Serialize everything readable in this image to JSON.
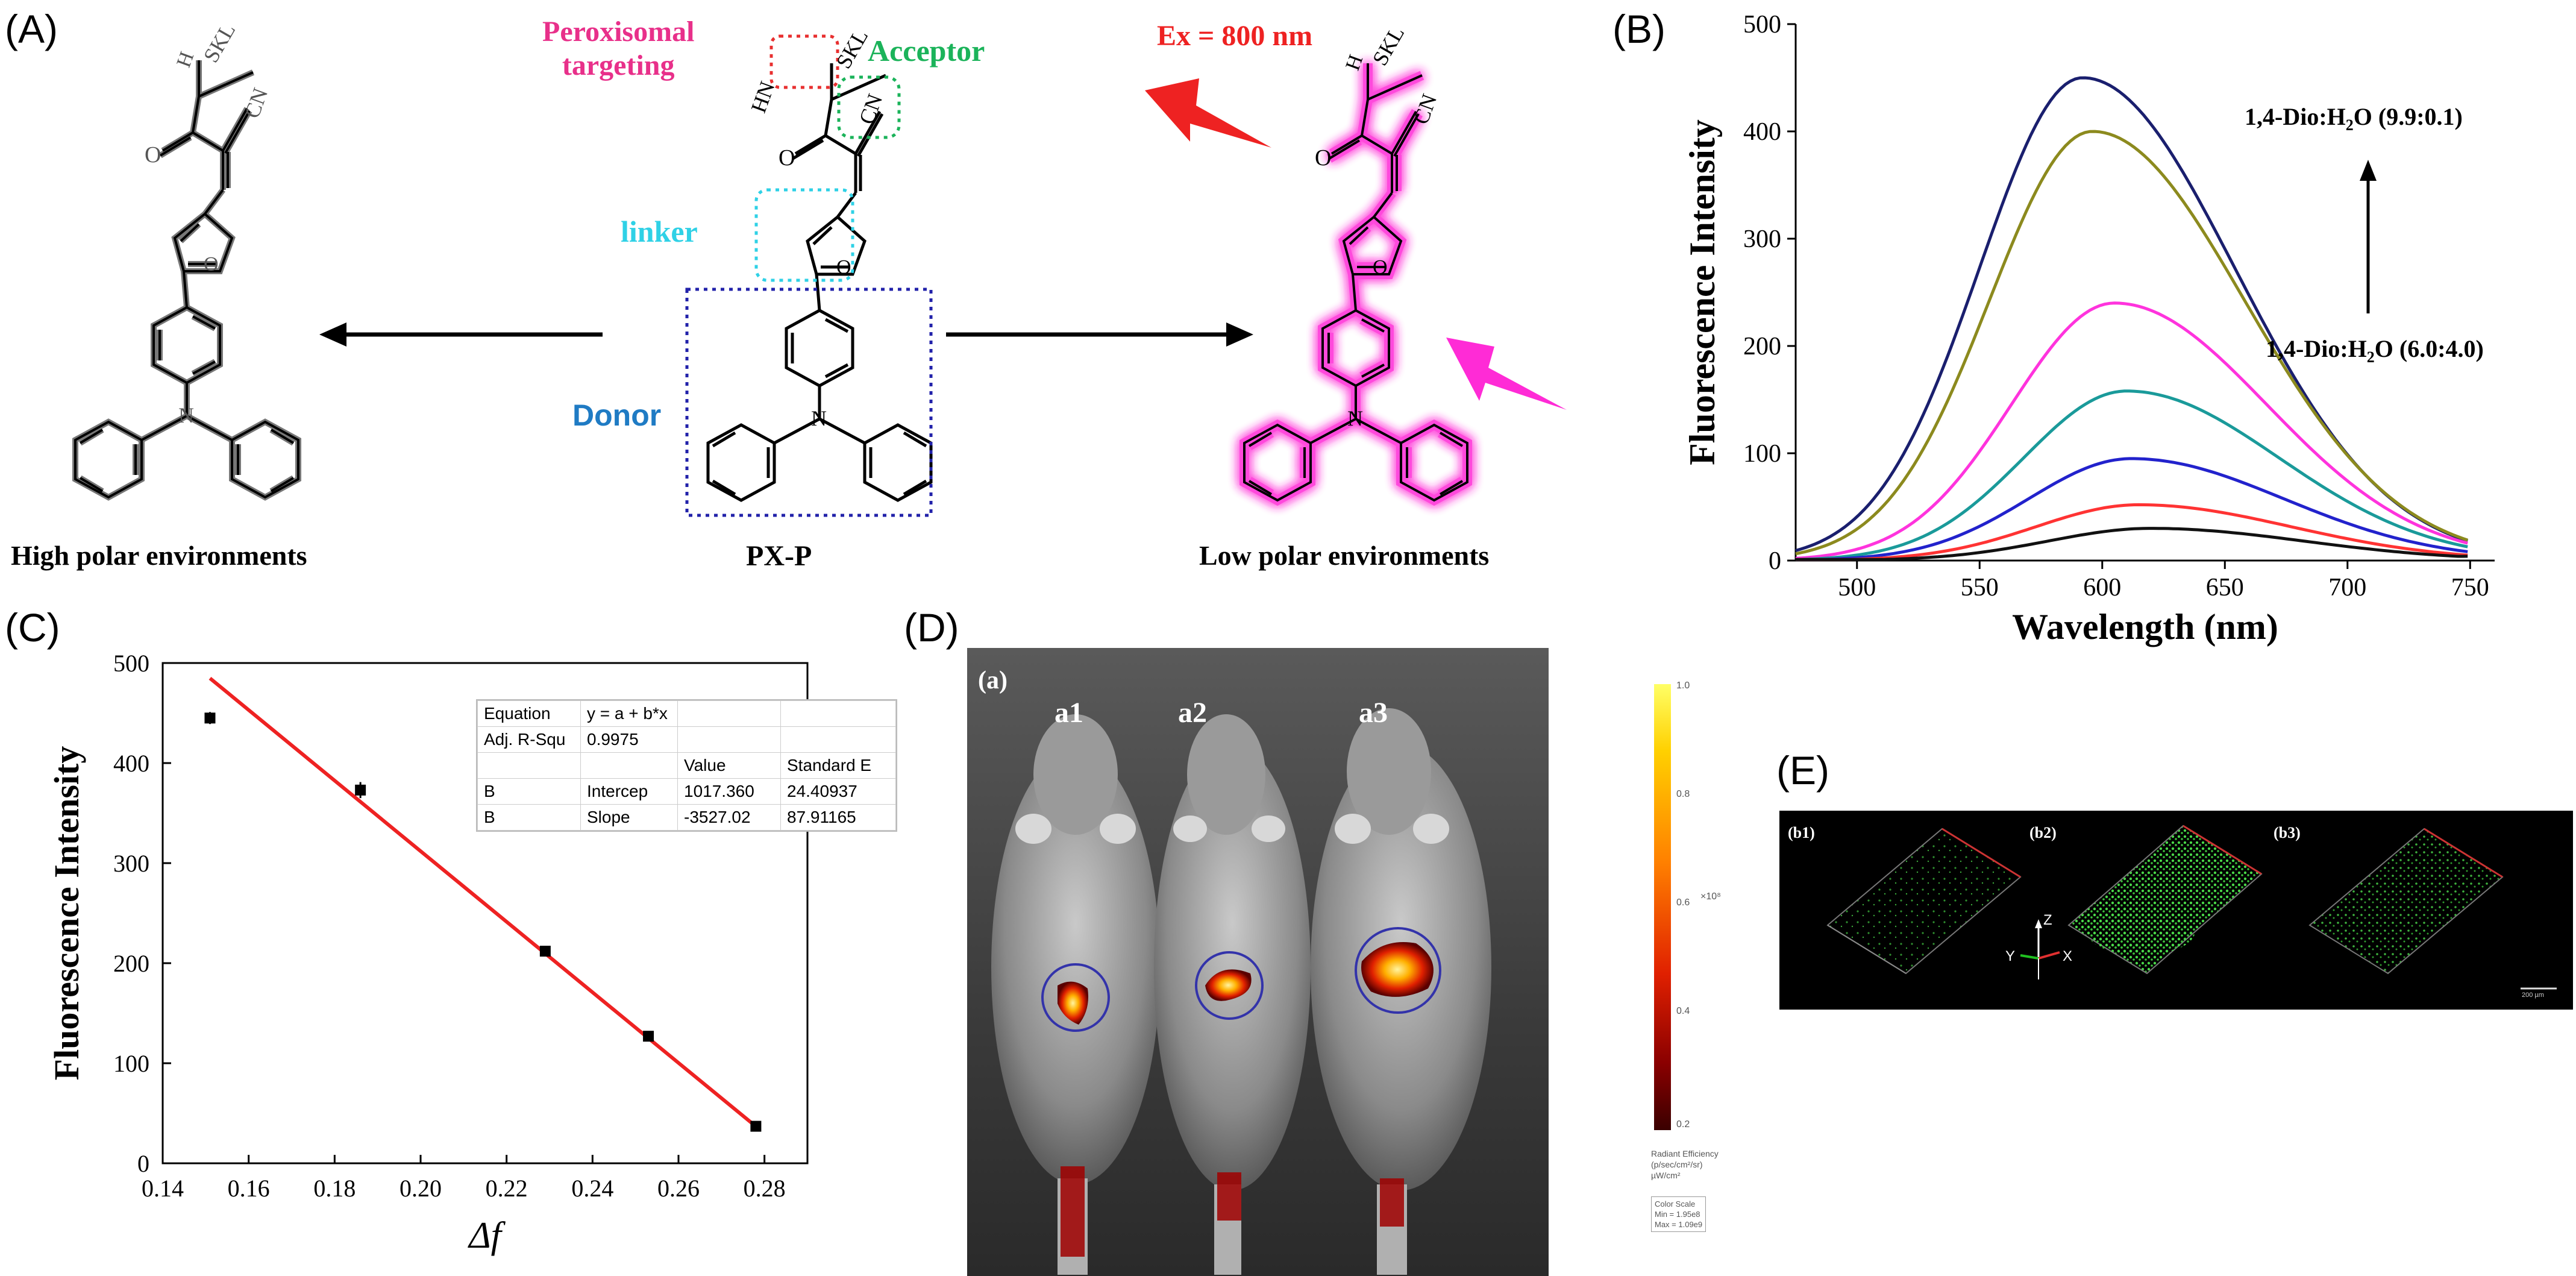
{
  "panels": {
    "A": {
      "letter": "(A)",
      "substituents": {
        "skl": "SKL",
        "nh": "HN",
        "h": "H",
        "cn": "CN",
        "o": "O",
        "n": "N"
      },
      "labels": {
        "peroxisomal": [
          "Peroxisomal",
          "targeting"
        ],
        "acceptor": "Acceptor",
        "linker": "linker",
        "donor": "Donor",
        "excitation": "Ex = 800 nm",
        "left_caption": "High polar environments",
        "center_caption": "PX-P",
        "right_caption": "Low polar environments"
      },
      "colors": {
        "peroxisomal": "#e8308a",
        "acceptor": "#1bb35a",
        "linker": "#2fd1e6",
        "donor": "#1f7bc4",
        "excitation": "#ee2222",
        "glow": "#ff2bd6",
        "box_red": "#e83030",
        "box_green": "#1bb35a",
        "box_blue": "#2222aa",
        "left_struct": "#777777"
      }
    },
    "B": {
      "letter": "(B)",
      "annotation_top": "1,4-Dio:H",
      "annotation_top_sub": "2",
      "annotation_top_tail": "O (9.9:0.1)",
      "annotation_bottom": "1,4-Dio:H",
      "annotation_bottom_sub": "2",
      "annotation_bottom_tail": "O (6.0:4.0)"
    },
    "C": {
      "letter": "(C)",
      "fit_table": {
        "rows": [
          [
            "Equation",
            "y = a + b*x",
            "",
            ""
          ],
          [
            "Adj. R-Squ",
            "0.9975",
            "",
            ""
          ],
          [
            "",
            "",
            "Value",
            "Standard E"
          ],
          [
            "B",
            "Intercep",
            "1017.360",
            "24.40937"
          ],
          [
            "B",
            "Slope",
            "-3527.02",
            "87.91165"
          ]
        ]
      }
    },
    "D": {
      "letter": "(D)",
      "sub_label": "(a)",
      "mice": [
        "a1",
        "a2",
        "a3"
      ],
      "colorbar_ticks": [
        "1.0",
        "0.8",
        "0.6",
        "0.4",
        "0.2"
      ],
      "colorbar_exp": "×10⁸",
      "colorbar_title": [
        "Radiant Efficiency",
        "(p/sec/cm²/sr)",
        "µW/cm²"
      ],
      "color_scale_box": [
        "Color Scale",
        "Min = 1.95e8",
        "Max = 1.09e9"
      ]
    },
    "E": {
      "letter": "(E)",
      "sub_labels": [
        "(b1)",
        "(b2)",
        "(b3)"
      ],
      "axes": {
        "z": "Z",
        "y": "Y",
        "x": "X"
      },
      "scale_label": "200 µm"
    }
  },
  "chart_data": [
    {
      "type": "line",
      "panel": "B",
      "xlabel": "Wavelength (nm)",
      "ylabel": "Fluorescence Intensity",
      "xlim": [
        475,
        760
      ],
      "ylim": [
        0,
        500
      ],
      "xticks": [
        500,
        550,
        600,
        650,
        700,
        750
      ],
      "yticks": [
        0,
        100,
        200,
        300,
        400,
        500
      ],
      "grid": false,
      "series": [
        {
          "color": "#1a1f6e",
          "peak_x": 592,
          "peak_y": 450,
          "end_y": 7
        },
        {
          "color": "#8c8a1e",
          "peak_x": 596,
          "peak_y": 400,
          "end_y": 7
        },
        {
          "color": "#ff33dd",
          "peak_x": 605,
          "peak_y": 240,
          "end_y": 7
        },
        {
          "color": "#1a9a9a",
          "peak_x": 610,
          "peak_y": 158,
          "end_y": 6
        },
        {
          "color": "#2222cc",
          "peak_x": 612,
          "peak_y": 95,
          "end_y": 5
        },
        {
          "color": "#ff3333",
          "peak_x": 615,
          "peak_y": 52,
          "end_y": 4
        },
        {
          "color": "#111111",
          "peak_x": 620,
          "peak_y": 30,
          "end_y": 3
        }
      ]
    },
    {
      "type": "scatter",
      "panel": "C",
      "xlabel": "Δf",
      "ylabel": "Fluorescence Intensity",
      "xlim": [
        0.14,
        0.29
      ],
      "ylim": [
        0,
        500
      ],
      "xticks": [
        0.14,
        0.16,
        0.18,
        0.2,
        0.22,
        0.24,
        0.26,
        0.28
      ],
      "yticks": [
        0,
        100,
        200,
        300,
        400,
        500
      ],
      "grid": false,
      "points": [
        {
          "x": 0.151,
          "y": 445,
          "err": 6
        },
        {
          "x": 0.186,
          "y": 373,
          "err": 8
        },
        {
          "x": 0.229,
          "y": 212,
          "err": 4
        },
        {
          "x": 0.253,
          "y": 127,
          "err": 3
        },
        {
          "x": 0.278,
          "y": 37,
          "err": 3
        }
      ],
      "fit": {
        "intercept": 1017.36,
        "slope": -3527.02,
        "x_range": [
          0.151,
          0.278
        ],
        "color": "#ee2222"
      }
    }
  ]
}
